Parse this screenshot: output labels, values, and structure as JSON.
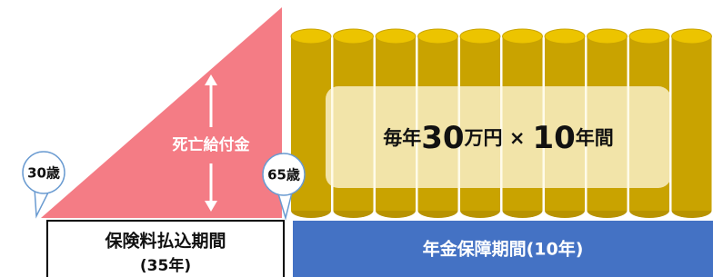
{
  "death_benefit": "死亡給付金",
  "start_age": "30歳",
  "end_age": "65歳",
  "annuity": {
    "parts": [
      "毎年",
      "30",
      "万円 ×",
      "10",
      "年間"
    ]
  },
  "payment_period": {
    "title": "保険料払込期間",
    "years": "(35年)"
  },
  "pension_period": "年金保障期間(10年)"
}
